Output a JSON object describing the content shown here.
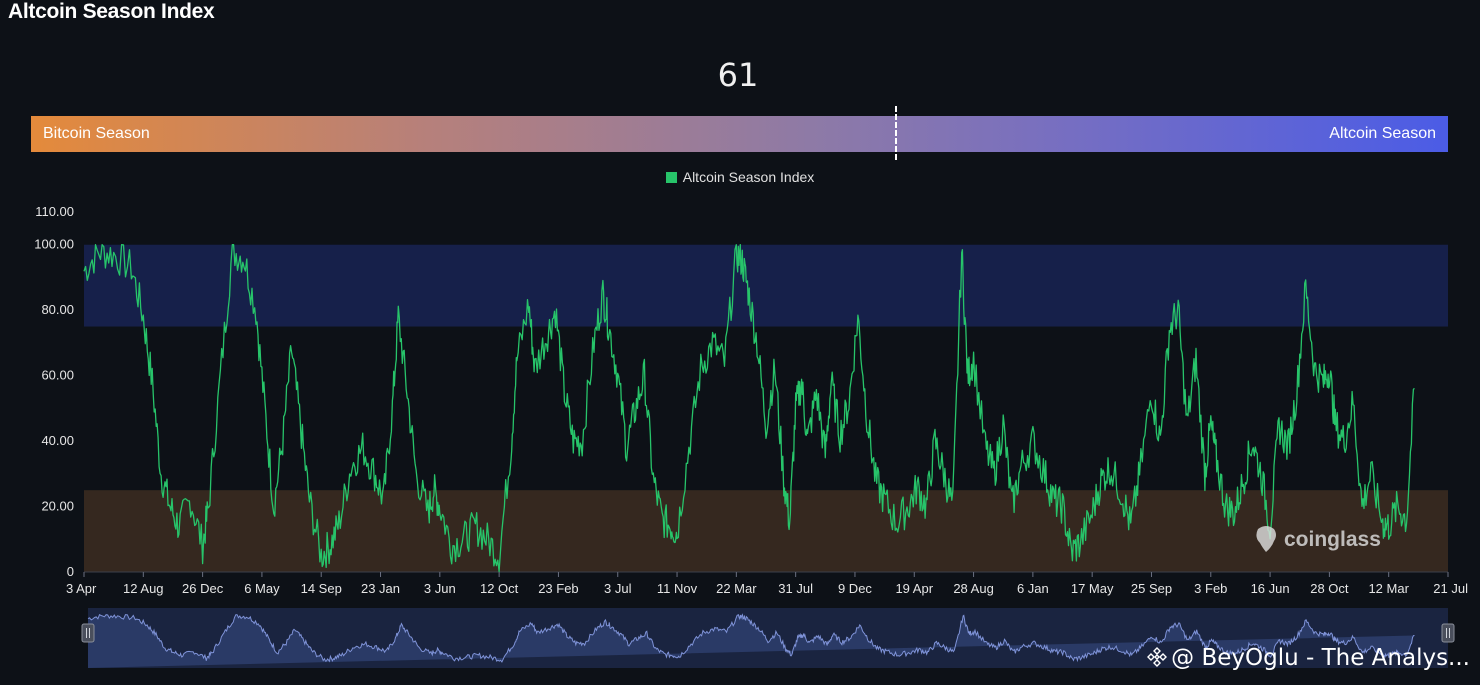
{
  "header": {
    "title": "Altcoin Season Index"
  },
  "gauge": {
    "current_value": "61",
    "value_numeric": 61,
    "left_label": "Bitcoin Season",
    "right_label": "Altcoin Season"
  },
  "colors": {
    "line": "#27c46a",
    "altcoin_band": "#16204a",
    "bitcoin_band": "#35281f",
    "navigator_fill": "#2a3a66",
    "navigator_line": "#7f93d8"
  },
  "chart_data": {
    "type": "line",
    "title": "",
    "legend": [
      "Altcoin Season Index"
    ],
    "legend_position": "top-center",
    "xlabel": "",
    "ylabel": "",
    "ylim": [
      0,
      110
    ],
    "y_ticks": [
      "0",
      "20.00",
      "40.00",
      "60.00",
      "80.00",
      "100.00",
      "110.00"
    ],
    "x_ticks": [
      "3 Apr",
      "12 Aug",
      "26 Dec",
      "6 May",
      "14 Sep",
      "23 Jan",
      "3 Jun",
      "12 Oct",
      "23 Feb",
      "3 Jul",
      "11 Nov",
      "22 Mar",
      "31 Jul",
      "9 Dec",
      "19 Apr",
      "28 Aug",
      "6 Jan",
      "17 May",
      "25 Sep",
      "3 Feb",
      "16 Jun",
      "28 Oct",
      "12 Mar",
      "21 Jul"
    ],
    "bands": [
      {
        "name": "Altcoin Season",
        "from": 75,
        "to": 100
      },
      {
        "name": "Bitcoin Season",
        "from": 0,
        "to": 25
      }
    ],
    "series": [
      {
        "name": "Altcoin Season Index",
        "x_tick_index": [
          0,
          0.25,
          0.5,
          0.8,
          1,
          1.15,
          1.3,
          1.45,
          1.6,
          1.8,
          2,
          2.1,
          2.3,
          2.5,
          2.7,
          2.9,
          3.05,
          3.2,
          3.35,
          3.5,
          3.65,
          3.8,
          4,
          4.15,
          4.3,
          4.5,
          4.7,
          4.9,
          5.05,
          5.2,
          5.3,
          5.45,
          5.6,
          5.8,
          5.9,
          6,
          6.2,
          6.4,
          6.6,
          6.8,
          7,
          7.2,
          7.3,
          7.5,
          7.6,
          7.8,
          7.95,
          8.1,
          8.25,
          8.4,
          8.6,
          8.75,
          8.85,
          9,
          9.15,
          9.3,
          9.45,
          9.6,
          9.75,
          9.9,
          10,
          10.2,
          10.4,
          10.6,
          10.8,
          11,
          11.1,
          11.2,
          11.35,
          11.5,
          11.65,
          11.8,
          11.9,
          12,
          12.1,
          12.2,
          12.35,
          12.5,
          12.6,
          12.75,
          12.9,
          13.05,
          13.2,
          13.35,
          13.5,
          13.7,
          13.9,
          14.05,
          14.2,
          14.35,
          14.5,
          14.65,
          14.8,
          14.9,
          15,
          15.2,
          15.35,
          15.5,
          15.65,
          15.8,
          16,
          16.2,
          16.35,
          16.5,
          16.65,
          16.8,
          17,
          17.15,
          17.3,
          17.5,
          17.65,
          17.8,
          18,
          18.15,
          18.3,
          18.45,
          18.6,
          18.75,
          18.9,
          19,
          19.1,
          19.25,
          19.4,
          19.55,
          19.7,
          19.85,
          20,
          20.15,
          20.3,
          20.45,
          20.6,
          20.75,
          20.9,
          21,
          21.1,
          21.25,
          21.4,
          21.55,
          21.7,
          21.9,
          22,
          22.15,
          22.3,
          22.45,
          22.6,
          22.75,
          22.9,
          23
        ],
        "values": [
          92,
          98,
          97,
          93,
          78,
          58,
          30,
          20,
          14,
          22,
          8,
          20,
          60,
          98,
          96,
          80,
          50,
          20,
          40,
          68,
          45,
          22,
          5,
          8,
          15,
          32,
          38,
          30,
          22,
          50,
          78,
          55,
          30,
          18,
          25,
          20,
          8,
          10,
          14,
          10,
          5,
          38,
          65,
          82,
          62,
          72,
          80,
          55,
          40,
          40,
          70,
          85,
          75,
          60,
          38,
          50,
          60,
          28,
          16,
          14,
          12,
          38,
          62,
          70,
          64,
          97,
          95,
          86,
          70,
          45,
          62,
          28,
          15,
          50,
          58,
          40,
          55,
          36,
          58,
          42,
          52,
          78,
          48,
          28,
          22,
          15,
          20,
          26,
          20,
          40,
          30,
          20,
          98,
          60,
          65,
          38,
          30,
          45,
          20,
          32,
          40,
          30,
          22,
          20,
          6,
          9,
          18,
          28,
          32,
          24,
          14,
          30,
          55,
          40,
          74,
          80,
          45,
          65,
          30,
          45,
          34,
          20,
          18,
          28,
          40,
          30,
          14,
          45,
          38,
          55,
          87,
          62,
          58,
          62,
          45,
          40,
          52,
          20,
          30,
          15,
          14,
          20,
          16,
          61
        ]
      }
    ]
  },
  "watermark": {
    "text": "coinglass"
  },
  "credit": {
    "text": "@ BeyOglu - The Analys..."
  }
}
